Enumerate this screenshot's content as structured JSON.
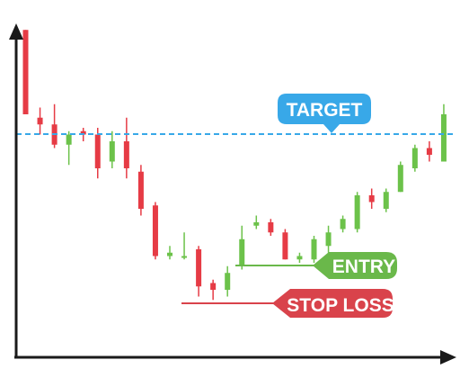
{
  "chart_data": {
    "type": "candlestick",
    "title": "",
    "xlabel": "",
    "ylabel": "",
    "grid": false,
    "ylim": [
      0,
      100
    ],
    "candles": [
      {
        "o": 97,
        "c": 72,
        "h": 97,
        "l": 72
      },
      {
        "o": 71,
        "c": 69,
        "h": 74,
        "l": 66
      },
      {
        "o": 69,
        "c": 63,
        "h": 75,
        "l": 62
      },
      {
        "o": 63,
        "c": 66,
        "h": 67,
        "l": 57
      },
      {
        "o": 67,
        "c": 66,
        "h": 68,
        "l": 64
      },
      {
        "o": 66,
        "c": 56,
        "h": 68,
        "l": 53
      },
      {
        "o": 58,
        "c": 64,
        "h": 67,
        "l": 56
      },
      {
        "o": 64,
        "c": 56,
        "h": 71,
        "l": 53
      },
      {
        "o": 55,
        "c": 44,
        "h": 57,
        "l": 42
      },
      {
        "o": 45,
        "c": 30,
        "h": 46,
        "l": 29
      },
      {
        "o": 30,
        "c": 31,
        "h": 33,
        "l": 29
      },
      {
        "o": 30,
        "c": 30,
        "h": 37,
        "l": 29
      },
      {
        "o": 32,
        "c": 21,
        "h": 33,
        "l": 18
      },
      {
        "o": 22,
        "c": 20,
        "h": 23,
        "l": 17
      },
      {
        "o": 20,
        "c": 25,
        "h": 27,
        "l": 18
      },
      {
        "o": 27,
        "c": 35,
        "h": 39,
        "l": 26
      },
      {
        "o": 39,
        "c": 40,
        "h": 42,
        "l": 38
      },
      {
        "o": 40,
        "c": 37,
        "h": 41,
        "l": 36
      },
      {
        "o": 37,
        "c": 29,
        "h": 38,
        "l": 29
      },
      {
        "o": 29,
        "c": 30,
        "h": 31,
        "l": 28
      },
      {
        "o": 29,
        "c": 35,
        "h": 36,
        "l": 28
      },
      {
        "o": 33,
        "c": 37,
        "h": 39,
        "l": 31
      },
      {
        "o": 38,
        "c": 41,
        "h": 42,
        "l": 37
      },
      {
        "o": 38,
        "c": 48,
        "h": 49,
        "l": 37
      },
      {
        "o": 48,
        "c": 46,
        "h": 50,
        "l": 44
      },
      {
        "o": 44,
        "c": 49,
        "h": 50,
        "l": 43
      },
      {
        "o": 49,
        "c": 57,
        "h": 58,
        "l": 49
      },
      {
        "o": 56,
        "c": 62,
        "h": 63,
        "l": 55
      },
      {
        "o": 62,
        "c": 60,
        "h": 64,
        "l": 58
      },
      {
        "o": 58,
        "c": 72,
        "h": 75,
        "l": 58
      }
    ],
    "levels": {
      "target": {
        "label": "TARGET",
        "value": 67
      },
      "entry": {
        "label": "ENTRY",
        "value": 22
      },
      "stop_loss": {
        "label": "STOP LOSS",
        "value": 12
      }
    },
    "colors": {
      "up": "#6cc24a",
      "down": "#e63b45",
      "target": "#38a8e8",
      "entry": "#6ab84a",
      "stop_loss": "#d9434b",
      "axis": "#1a1a1a"
    }
  }
}
